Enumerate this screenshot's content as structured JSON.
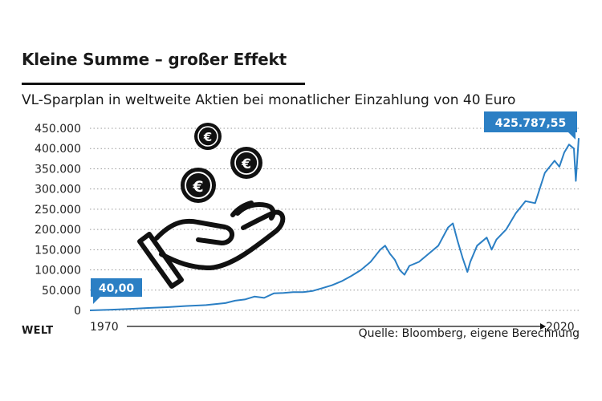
{
  "header": {
    "title": "Kleine Summe – großer Effekt",
    "subtitle": "VL-Sparplan in weltweite Aktien bei monatlicher Einzahlung von 40 Euro"
  },
  "footer": {
    "brand": "WELT",
    "source": "Quelle: Bloomberg, eigene Berechnung"
  },
  "colors": {
    "line": "#2b7fc4",
    "label_box": "#2b7fc4",
    "grid": "#9a9a9a",
    "icon": "#111111"
  },
  "illustration": {
    "icons": [
      "hand-icon",
      "euro-coin-icon"
    ],
    "coin_symbol": "€"
  },
  "chart_data": {
    "type": "line",
    "title": "",
    "xlabel": "",
    "ylabel": "",
    "xlim": [
      1970,
      2020.5
    ],
    "ylim": [
      0,
      450000
    ],
    "grid": true,
    "yticks": [
      0,
      50000,
      100000,
      150000,
      200000,
      250000,
      300000,
      350000,
      400000,
      450000
    ],
    "ytick_labels": [
      "0",
      "50.000",
      "100.000",
      "150.000",
      "200.000",
      "250.000",
      "300.000",
      "350.000",
      "400.000",
      "450.000"
    ],
    "xtick_labels": [
      "1970",
      "2020"
    ],
    "series": [
      {
        "x": [
          1970,
          1972,
          1974,
          1976,
          1978,
          1980,
          1982,
          1984,
          1985,
          1986,
          1987,
          1988,
          1989,
          1990,
          1991,
          1992,
          1993,
          1994,
          1995,
          1996,
          1997,
          1998,
          1999,
          2000,
          2000.5,
          2001,
          2001.5,
          2002,
          2002.5,
          2003,
          2004,
          2005,
          2006,
          2007,
          2007.5,
          2008,
          2008.5,
          2009,
          2009.3,
          2010,
          2011,
          2011.5,
          2012,
          2013,
          2014,
          2015,
          2016,
          2017,
          2018,
          2018.5,
          2019,
          2019.5,
          2020,
          2020.2,
          2020.5
        ],
        "values": [
          40,
          1500,
          3500,
          6000,
          8000,
          11000,
          13000,
          18000,
          24000,
          27000,
          34000,
          31000,
          42000,
          43000,
          45000,
          45000,
          48000,
          55000,
          62000,
          72000,
          85000,
          100000,
          120000,
          150000,
          160000,
          140000,
          125000,
          100000,
          88000,
          110000,
          120000,
          140000,
          160000,
          205000,
          215000,
          170000,
          130000,
          95000,
          120000,
          160000,
          180000,
          150000,
          175000,
          200000,
          240000,
          270000,
          265000,
          340000,
          370000,
          355000,
          390000,
          410000,
          400000,
          320000,
          425788
        ]
      }
    ],
    "annotations": {
      "start_label": "40,00",
      "end_label": "425.787,55"
    }
  }
}
